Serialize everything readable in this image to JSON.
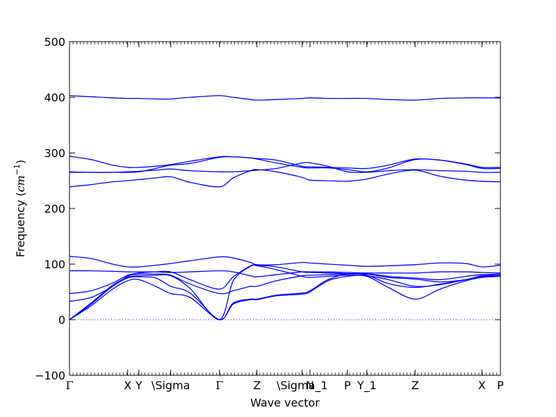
{
  "chart_data": {
    "type": "line",
    "xlabel": "Wave vector",
    "ylabel_prefix": "Frequency (",
    "ylabel_unit": "cm",
    "ylabel_exp": "−1",
    "ylabel_suffix": ")",
    "ylim": [
      -100,
      500
    ],
    "xlim": [
      0,
      1
    ],
    "y_ticks": [
      -100,
      0,
      100,
      200,
      300,
      400,
      500
    ],
    "y_tick_labels": [
      "−100",
      "0",
      "100",
      "200",
      "300",
      "400",
      "500"
    ],
    "x_ticks": [
      0,
      0.135,
      0.161,
      0.235,
      0.348,
      0.435,
      0.54,
      0.558,
      0.645,
      0.69,
      0.802,
      0.957,
      1.0
    ],
    "x_tick_labels": [
      "Γ",
      "X",
      "Y",
      "\\Sigma",
      "Γ",
      "Z",
      "\\Sigma_1",
      "N",
      "P",
      "Y_1",
      "Z",
      "X",
      "P"
    ],
    "zero_line": 0,
    "line_color": "#0000ff",
    "series": [
      {
        "x": [
          0,
          0.05,
          0.1,
          0.135,
          0.161,
          0.2,
          0.235,
          0.28,
          0.348,
          0.38,
          0.42,
          0.435,
          0.48,
          0.54,
          0.558,
          0.6,
          0.645,
          0.69,
          0.74,
          0.802,
          0.86,
          0.92,
          0.957,
          1.0
        ],
        "y": [
          403,
          401,
          399,
          398,
          398,
          397,
          397,
          400,
          403,
          400,
          396,
          395,
          396,
          398,
          399,
          398,
          398,
          398,
          396,
          395,
          398,
          399,
          399,
          399
        ]
      },
      {
        "x": [
          0,
          0.05,
          0.1,
          0.135,
          0.161,
          0.2,
          0.235,
          0.28,
          0.348,
          0.38,
          0.42,
          0.435,
          0.48,
          0.54,
          0.558,
          0.6,
          0.645,
          0.69,
          0.74,
          0.802,
          0.86,
          0.92,
          0.957,
          1.0
        ],
        "y": [
          294,
          288,
          278,
          274,
          274,
          276,
          279,
          285,
          293,
          293,
          291,
          290,
          287,
          276,
          275,
          274,
          273,
          272,
          278,
          289,
          287,
          280,
          274,
          274
        ]
      },
      {
        "x": [
          0,
          0.05,
          0.1,
          0.135,
          0.161,
          0.2,
          0.235,
          0.28,
          0.348,
          0.38,
          0.42,
          0.435,
          0.48,
          0.54,
          0.558,
          0.6,
          0.645,
          0.69,
          0.74,
          0.802,
          0.86,
          0.92,
          0.957,
          1.0
        ],
        "y": [
          266,
          265,
          265,
          265,
          266,
          272,
          278,
          281,
          292,
          293,
          291,
          289,
          282,
          274,
          273,
          273,
          270,
          266,
          273,
          288,
          287,
          279,
          272,
          272
        ]
      },
      {
        "x": [
          0,
          0.05,
          0.1,
          0.135,
          0.161,
          0.2,
          0.235,
          0.28,
          0.348,
          0.38,
          0.42,
          0.435,
          0.48,
          0.54,
          0.558,
          0.6,
          0.645,
          0.69,
          0.74,
          0.802,
          0.86,
          0.92,
          0.957,
          1.0
        ],
        "y": [
          265,
          265,
          265,
          266,
          267,
          269,
          271,
          268,
          266,
          266,
          268,
          269,
          272,
          282,
          282,
          276,
          266,
          265,
          268,
          270,
          268,
          267,
          265,
          265
        ]
      },
      {
        "x": [
          0,
          0.05,
          0.1,
          0.135,
          0.161,
          0.2,
          0.235,
          0.28,
          0.348,
          0.38,
          0.42,
          0.435,
          0.48,
          0.54,
          0.558,
          0.6,
          0.645,
          0.69,
          0.74,
          0.802,
          0.86,
          0.92,
          0.957,
          1.0
        ],
        "y": [
          239,
          243,
          248,
          250,
          252,
          255,
          257,
          247,
          239,
          255,
          268,
          270,
          266,
          256,
          251,
          250,
          249,
          253,
          262,
          269,
          258,
          251,
          249,
          248
        ]
      },
      {
        "x": [
          0,
          0.05,
          0.1,
          0.135,
          0.161,
          0.2,
          0.235,
          0.28,
          0.348,
          0.38,
          0.42,
          0.435,
          0.48,
          0.54,
          0.558,
          0.6,
          0.645,
          0.69,
          0.74,
          0.802,
          0.86,
          0.92,
          0.957,
          1.0
        ],
        "y": [
          114,
          110,
          100,
          95,
          95,
          98,
          101,
          106,
          113,
          111,
          103,
          99,
          99,
          103,
          102,
          100,
          98,
          96,
          97,
          99,
          102,
          101,
          95,
          98
        ]
      },
      {
        "x": [
          0,
          0.05,
          0.1,
          0.135,
          0.161,
          0.2,
          0.235,
          0.28,
          0.348,
          0.38,
          0.42,
          0.435,
          0.48,
          0.54,
          0.558,
          0.6,
          0.645,
          0.69,
          0.74,
          0.802,
          0.86,
          0.92,
          0.957,
          1.0
        ],
        "y": [
          88,
          88,
          87,
          86,
          86,
          86,
          85,
          86,
          88,
          86,
          79,
          77,
          81,
          86,
          86,
          86,
          85,
          84,
          84,
          84,
          86,
          86,
          85,
          84
        ]
      },
      {
        "x": [
          0,
          0.05,
          0.1,
          0.135,
          0.161,
          0.2,
          0.235,
          0.28,
          0.348,
          0.38,
          0.42,
          0.435,
          0.48,
          0.54,
          0.558,
          0.6,
          0.645,
          0.69,
          0.74,
          0.802,
          0.86,
          0.92,
          0.957,
          1.0
        ],
        "y": [
          47,
          52,
          66,
          80,
          84,
          86,
          86,
          72,
          55,
          77,
          97,
          98,
          95,
          86,
          85,
          84,
          83,
          83,
          78,
          75,
          72,
          78,
          81,
          82
        ]
      },
      {
        "x": [
          0,
          0.05,
          0.1,
          0.135,
          0.161,
          0.2,
          0.235,
          0.28,
          0.348,
          0.38,
          0.42,
          0.435,
          0.48,
          0.54,
          0.558,
          0.6,
          0.645,
          0.69,
          0.74,
          0.802,
          0.86,
          0.92,
          0.957,
          1.0
        ],
        "y": [
          33,
          40,
          60,
          78,
          82,
          82,
          80,
          64,
          47,
          52,
          60,
          60,
          70,
          79,
          80,
          81,
          82,
          82,
          76,
          73,
          68,
          72,
          78,
          80
        ]
      },
      {
        "x": [
          0,
          0.05,
          0.1,
          0.135,
          0.161,
          0.2,
          0.235,
          0.28,
          0.348,
          0.38,
          0.42,
          0.435,
          0.48,
          0.54,
          0.558,
          0.6,
          0.645,
          0.69,
          0.74,
          0.802,
          0.86,
          0.92,
          0.957,
          1.0
        ],
        "y": [
          0,
          30,
          62,
          76,
          79,
          80,
          79,
          56,
          0,
          70,
          96,
          97,
          90,
          78,
          76,
          78,
          80,
          79,
          72,
          60,
          63,
          72,
          79,
          80
        ]
      },
      {
        "x": [
          0,
          0.05,
          0.1,
          0.135,
          0.161,
          0.2,
          0.235,
          0.28,
          0.348,
          0.38,
          0.42,
          0.435,
          0.48,
          0.54,
          0.558,
          0.6,
          0.645,
          0.69,
          0.74,
          0.802,
          0.86,
          0.92,
          0.957,
          1.0
        ],
        "y": [
          0,
          28,
          60,
          75,
          77,
          75,
          60,
          48,
          0,
          30,
          37,
          37,
          44,
          48,
          52,
          72,
          82,
          80,
          65,
          58,
          64,
          72,
          77,
          80
        ]
      },
      {
        "x": [
          0,
          0.05,
          0.1,
          0.135,
          0.161,
          0.2,
          0.235,
          0.28,
          0.348,
          0.38,
          0.42,
          0.435,
          0.48,
          0.54,
          0.558,
          0.6,
          0.645,
          0.69,
          0.74,
          0.802,
          0.86,
          0.92,
          0.957,
          1.0
        ],
        "y": [
          0,
          25,
          55,
          70,
          72,
          60,
          47,
          40,
          0,
          28,
          36,
          36,
          43,
          46,
          50,
          70,
          78,
          78,
          58,
          37,
          55,
          70,
          76,
          78
        ]
      }
    ]
  }
}
